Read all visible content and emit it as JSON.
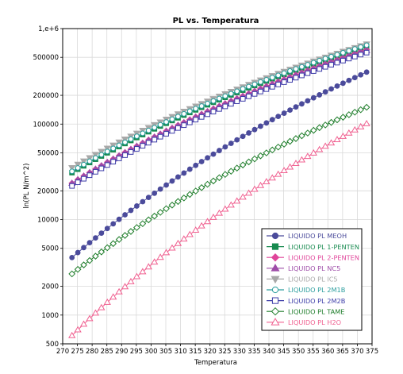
{
  "chart_data": {
    "type": "scatter",
    "title": "PL vs. Temperatura",
    "xlabel": "Temperatura",
    "ylabel": "ln(PL N/m^2)",
    "xscale": "linear",
    "yscale": "log",
    "xlim": [
      270,
      375
    ],
    "ylim": [
      500,
      1000000
    ],
    "grid": true,
    "legend_position": "bottom-right",
    "x_ticks": [
      270,
      275,
      280,
      285,
      290,
      295,
      300,
      305,
      310,
      315,
      320,
      325,
      330,
      335,
      340,
      345,
      350,
      355,
      360,
      365,
      370,
      375
    ],
    "x_tick_labels": [
      "270",
      "275",
      "280",
      "285",
      "290",
      "295",
      "300",
      "305",
      "310",
      "315",
      "320",
      "325",
      "330",
      "335",
      "340",
      "345",
      "350",
      "355",
      "360",
      "365",
      "370",
      "375"
    ],
    "y_ticks": [
      500,
      1000,
      2000,
      5000,
      10000,
      20000,
      50000,
      100000,
      200000,
      500000,
      1000000
    ],
    "y_tick_labels": [
      "500",
      "1000",
      "2000",
      "5000",
      "10000",
      "20000",
      "50000",
      "100000",
      "200000",
      "500000",
      "1,e+6"
    ],
    "x_start": 273.15,
    "x_end": 373.15,
    "x_step": 2,
    "series": [
      {
        "name": "LIQUIDO PL MEOH",
        "color": "#4b4b9b",
        "marker": "circle-filled",
        "y_start": 4000,
        "y_end": 350000
      },
      {
        "name": "LIQUIDO PL 1-PENTEN",
        "color": "#178a4f",
        "marker": "square-filled",
        "y_start": 31000,
        "y_end": 650000
      },
      {
        "name": "LIQUIDO PL 2-PENTEN",
        "color": "#e0459a",
        "marker": "diamond-filled",
        "y_start": 24000,
        "y_end": 600000
      },
      {
        "name": "LIQUIDO PL NC5",
        "color": "#9e4da8",
        "marker": "triangle-filled",
        "y_start": 24000,
        "y_end": 590000
      },
      {
        "name": "LIQUIDO PL IC5",
        "color": "#a8a8a8",
        "marker": "triangle-down-filled",
        "y_start": 35000,
        "y_end": 690000
      },
      {
        "name": "LIQUIDO PL 2M1B",
        "color": "#2a9d9d",
        "marker": "circle-open",
        "y_start": 32000,
        "y_end": 670000
      },
      {
        "name": "LIQUIDO PL 2M2B",
        "color": "#3c3ca8",
        "marker": "square-open",
        "y_start": 22500,
        "y_end": 560000
      },
      {
        "name": "LIQUIDO PL TAME",
        "color": "#1e7d2a",
        "marker": "diamond-open",
        "y_start": 2700,
        "y_end": 150000
      },
      {
        "name": "LIQUIDO PL H2O",
        "color": "#f06090",
        "marker": "triangle-open",
        "y_start": 610,
        "y_end": 101000
      }
    ]
  }
}
